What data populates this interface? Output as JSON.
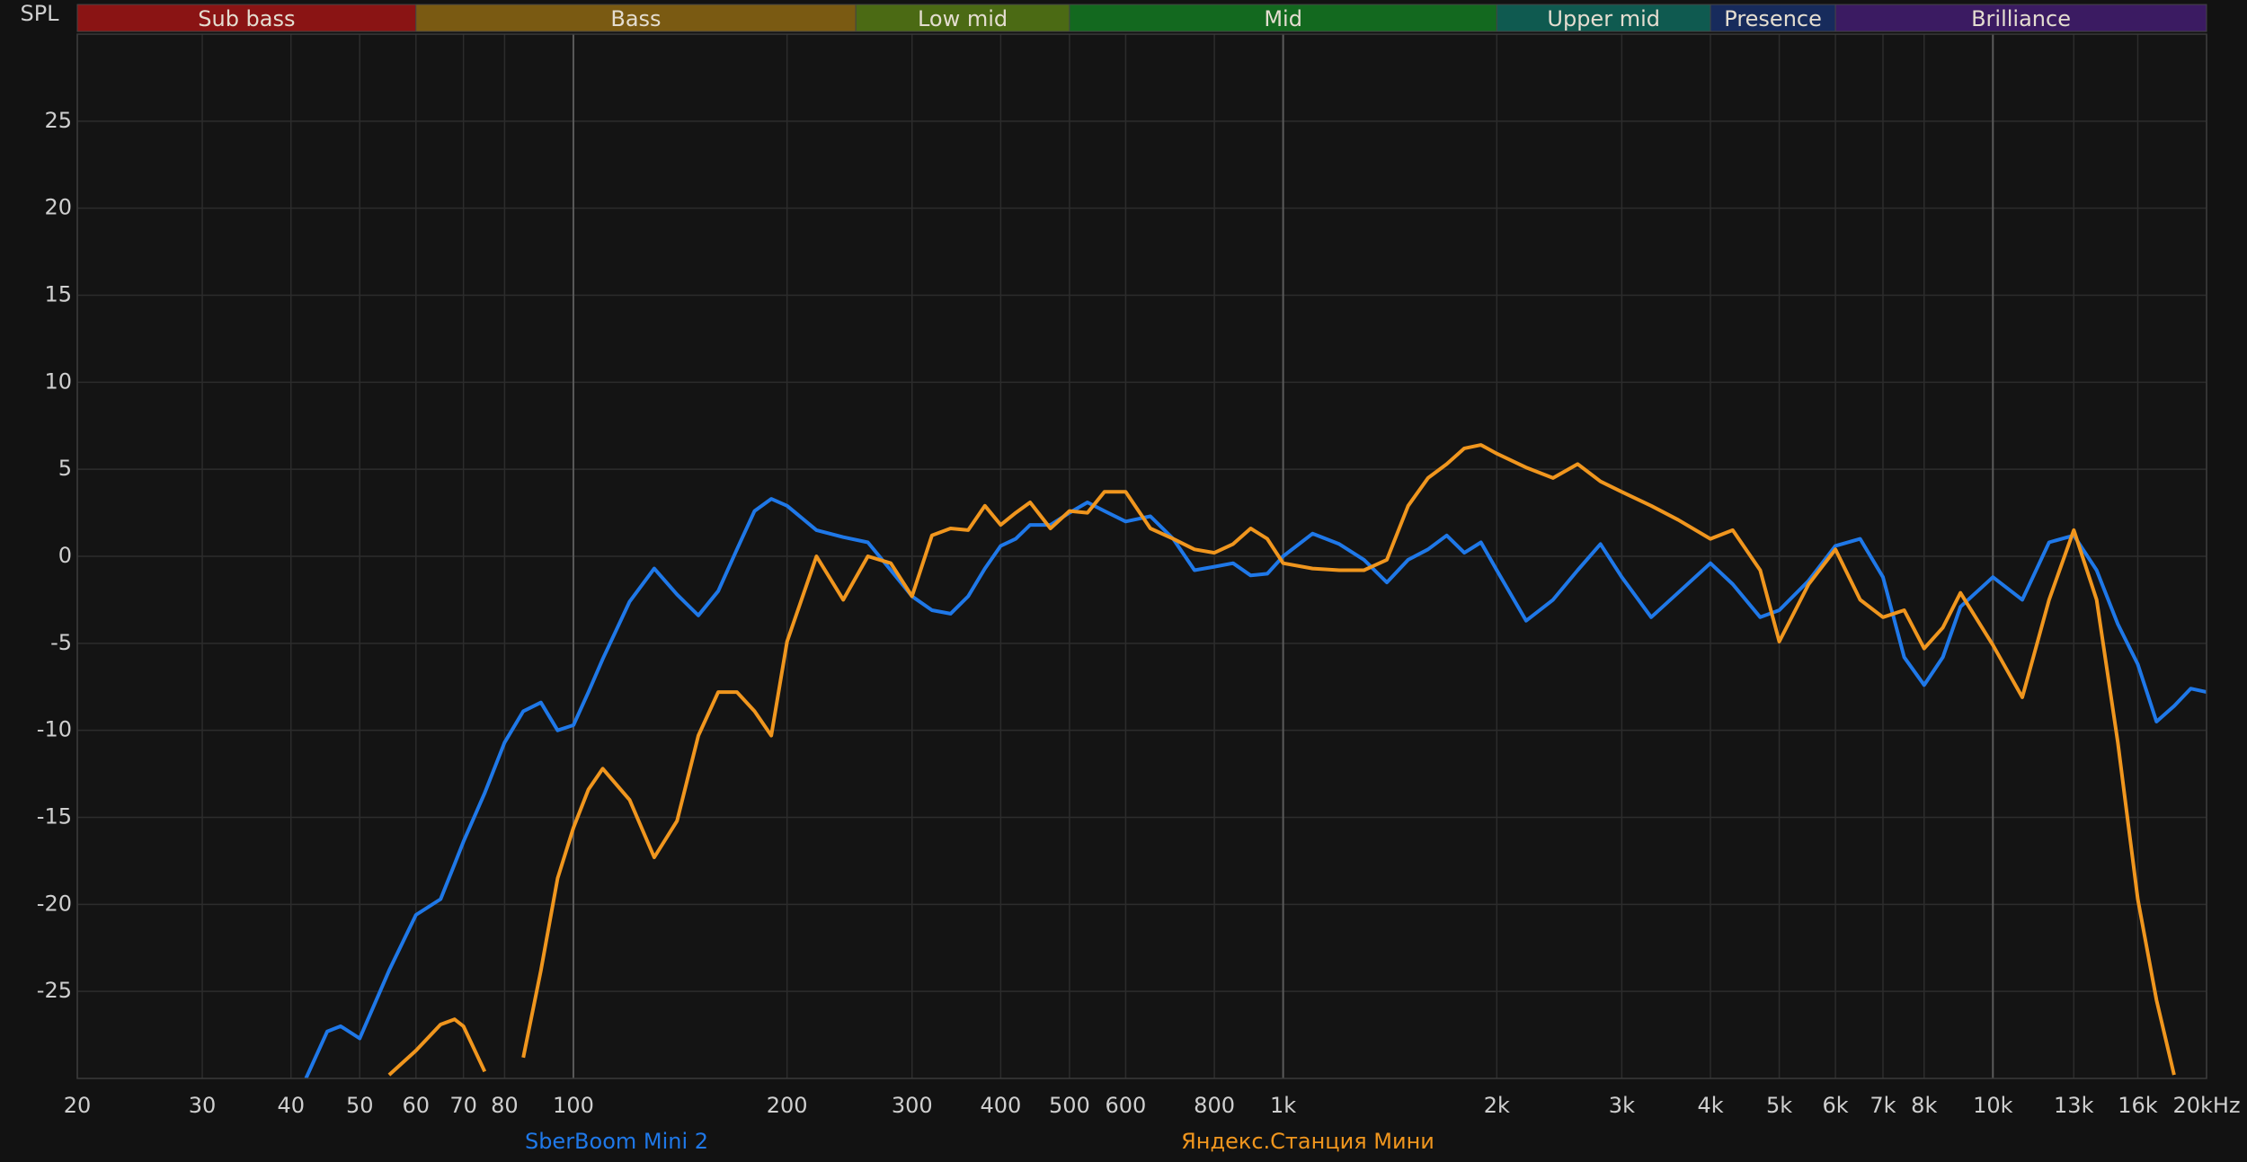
{
  "chart_data": {
    "type": "line",
    "y_label": "SPL",
    "xscale": "log",
    "grid": true,
    "xlim": [
      20,
      20000
    ],
    "ylim": [
      -30,
      30
    ],
    "yticks": [
      -25,
      -20,
      -15,
      -10,
      -5,
      0,
      5,
      10,
      15,
      20,
      25
    ],
    "xticks": [
      20,
      30,
      40,
      50,
      60,
      70,
      80,
      100,
      200,
      300,
      400,
      500,
      600,
      800,
      {
        "value": 1000,
        "label": "1k"
      },
      {
        "value": 2000,
        "label": "2k"
      },
      {
        "value": 3000,
        "label": "3k"
      },
      {
        "value": 4000,
        "label": "4k"
      },
      {
        "value": 5000,
        "label": "5k"
      },
      {
        "value": 6000,
        "label": "6k"
      },
      {
        "value": 7000,
        "label": "7k"
      },
      {
        "value": 8000,
        "label": "8k"
      },
      {
        "value": 10000,
        "label": "10k"
      },
      {
        "value": 13000,
        "label": "13k"
      },
      {
        "value": 16000,
        "label": "16k"
      },
      {
        "value": 20000,
        "label": "20kHz"
      }
    ],
    "bands": [
      {
        "name": "Sub bass",
        "from": 20,
        "to": 60,
        "color": "#8a1414"
      },
      {
        "name": "Bass",
        "from": 60,
        "to": 250,
        "color": "#7a5a12"
      },
      {
        "name": "Low mid",
        "from": 250,
        "to": 500,
        "color": "#4b6a14"
      },
      {
        "name": "Mid",
        "from": 500,
        "to": 2000,
        "color": "#13691f"
      },
      {
        "name": "Upper mid",
        "from": 2000,
        "to": 4000,
        "color": "#0f5a50"
      },
      {
        "name": "Presence",
        "from": 4000,
        "to": 6000,
        "color": "#172b5c"
      },
      {
        "name": "Brilliance",
        "from": 6000,
        "to": 20000,
        "color": "#3b1b62"
      }
    ],
    "x": [
      40,
      42,
      45,
      47,
      50,
      55,
      60,
      65,
      68,
      70,
      75,
      80,
      85,
      90,
      95,
      100,
      105,
      110,
      120,
      130,
      140,
      150,
      160,
      170,
      180,
      190,
      200,
      220,
      240,
      260,
      280,
      300,
      320,
      340,
      360,
      380,
      400,
      420,
      440,
      470,
      500,
      530,
      560,
      600,
      650,
      700,
      750,
      800,
      850,
      900,
      950,
      1000,
      1100,
      1200,
      1300,
      1400,
      1500,
      1600,
      1700,
      1800,
      1900,
      2000,
      2200,
      2400,
      2600,
      2800,
      3000,
      3300,
      3600,
      4000,
      4300,
      4700,
      5000,
      5500,
      6000,
      6500,
      7000,
      7500,
      8000,
      8500,
      9000,
      10000,
      11000,
      12000,
      13000,
      14000,
      15000,
      16000,
      17000,
      18000,
      19000,
      20000
    ],
    "series": [
      {
        "name": "SberBoom Mini 2",
        "color": "#1f78e8",
        "values": [
          null,
          -30,
          -27.3,
          -27.0,
          -27.7,
          -23.8,
          -20.6,
          -19.7,
          -17.7,
          -16.4,
          -13.6,
          -10.7,
          -8.9,
          -8.4,
          -10.0,
          -9.7,
          -7.8,
          -5.9,
          -2.6,
          -0.7,
          -2.2,
          -3.4,
          -2.0,
          0.4,
          2.6,
          3.3,
          2.9,
          1.5,
          1.1,
          0.8,
          -0.8,
          -2.3,
          -3.1,
          -3.3,
          -2.3,
          -0.7,
          0.6,
          1.0,
          1.8,
          1.8,
          2.5,
          3.1,
          2.6,
          2.0,
          2.3,
          1.0,
          -0.8,
          -0.6,
          -0.4,
          -1.1,
          -1.0,
          0,
          1.3,
          0.7,
          -0.2,
          -1.5,
          -0.2,
          0.4,
          1.2,
          0.2,
          0.8,
          -0.8,
          -3.7,
          -2.5,
          -0.8,
          0.7,
          -1.2,
          -3.5,
          -2.1,
          -0.4,
          -1.6,
          -3.5,
          -3.1,
          -1.4,
          0.6,
          1.0,
          -1.2,
          -5.8,
          -7.4,
          -5.8,
          -2.9,
          -1.2,
          -2.5,
          0.8,
          1.2,
          -0.8,
          -3.9,
          -6.2,
          -9.5,
          -8.6,
          -7.6,
          -7.8
        ]
      },
      {
        "name": "Яндекс.Станция Мини",
        "color": "#f0961e",
        "values": [
          null,
          null,
          null,
          null,
          null,
          -29.8,
          -28.4,
          -26.9,
          -26.6,
          -27.0,
          -29.6,
          null,
          -28.8,
          -23.8,
          -18.5,
          -15.6,
          -13.4,
          -12.2,
          -14.0,
          -17.3,
          -15.2,
          -10.3,
          -7.8,
          -7.8,
          -8.9,
          -10.3,
          -4.9,
          0,
          -2.5,
          0,
          -0.4,
          -2.3,
          1.2,
          1.6,
          1.5,
          2.9,
          1.8,
          2.5,
          3.1,
          1.6,
          2.6,
          2.5,
          3.7,
          3.7,
          1.6,
          1.0,
          0.4,
          0.2,
          0.7,
          1.6,
          1.0,
          -0.4,
          -0.7,
          -0.8,
          -0.8,
          -0.2,
          2.9,
          4.5,
          5.3,
          6.2,
          6.4,
          5.9,
          5.1,
          4.5,
          5.3,
          4.3,
          3.7,
          2.9,
          2.1,
          1.0,
          1.5,
          -0.8,
          -4.9,
          -1.6,
          0.4,
          -2.5,
          -3.5,
          -3.1,
          -5.3,
          -4.1,
          -2.1,
          -5.1,
          -8.1,
          -2.5,
          1.5,
          -2.5,
          -10.7,
          -19.7,
          -25.5,
          -29.8,
          null,
          null
        ]
      }
    ]
  }
}
